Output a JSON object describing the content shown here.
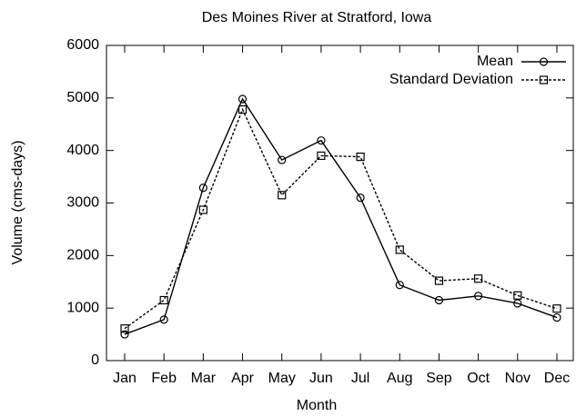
{
  "chart_data": {
    "type": "line",
    "title": "Des Moines River at Stratford, Iowa",
    "xlabel": "Month",
    "ylabel": "Volume (cms-days)",
    "categories": [
      "Jan",
      "Feb",
      "Mar",
      "Apr",
      "May",
      "Jun",
      "Jul",
      "Aug",
      "Sep",
      "Oct",
      "Nov",
      "Dec"
    ],
    "series": [
      {
        "name": "Mean",
        "color": "#000000",
        "marker": "circle",
        "dashed": false,
        "values": [
          500,
          780,
          3290,
          4980,
          3820,
          4190,
          3100,
          1440,
          1150,
          1230,
          1090,
          820
        ]
      },
      {
        "name": "Standard Deviation",
        "color": "#000000",
        "marker": "square",
        "dashed": true,
        "values": [
          610,
          1150,
          2870,
          4780,
          3150,
          3900,
          3880,
          2110,
          1520,
          1560,
          1240,
          990
        ]
      }
    ],
    "ylim": [
      0,
      6000
    ],
    "yticks": [
      0,
      1000,
      2000,
      3000,
      4000,
      5000,
      6000
    ],
    "grid": false,
    "legend": "upper right"
  }
}
